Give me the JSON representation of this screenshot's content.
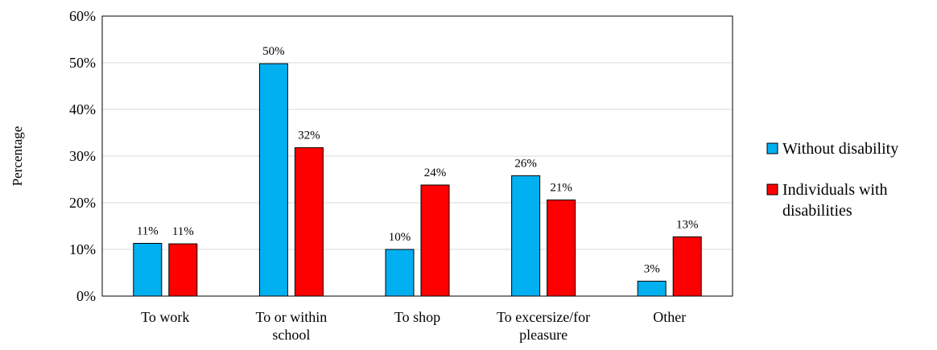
{
  "chart_data": {
    "type": "bar",
    "categories": [
      [
        "To work"
      ],
      [
        "To or within",
        "school"
      ],
      [
        "To shop"
      ],
      [
        "To excersize/for",
        "pleasure"
      ],
      [
        "Other"
      ]
    ],
    "series": [
      {
        "name": "Without disability",
        "color": "#00B0F0",
        "values": [
          11.3,
          49.8,
          10.0,
          25.8,
          3.2
        ],
        "labels": [
          "11%",
          "50%",
          "10%",
          "26%",
          "3%"
        ]
      },
      {
        "name": [
          "Individuals with",
          "disabilities"
        ],
        "color": "#FF0000",
        "values": [
          11.2,
          31.8,
          23.8,
          20.6,
          12.7
        ],
        "labels": [
          "11%",
          "32%",
          "24%",
          "21%",
          "13%"
        ]
      }
    ],
    "ylabel": "Percentage",
    "ylim": [
      0,
      60
    ],
    "yticks": [
      0,
      10,
      20,
      30,
      40,
      50,
      60
    ],
    "ytick_labels": [
      "0%",
      "10%",
      "20%",
      "30%",
      "40%",
      "50%",
      "60%"
    ],
    "grid": true,
    "legend_position": "right"
  }
}
